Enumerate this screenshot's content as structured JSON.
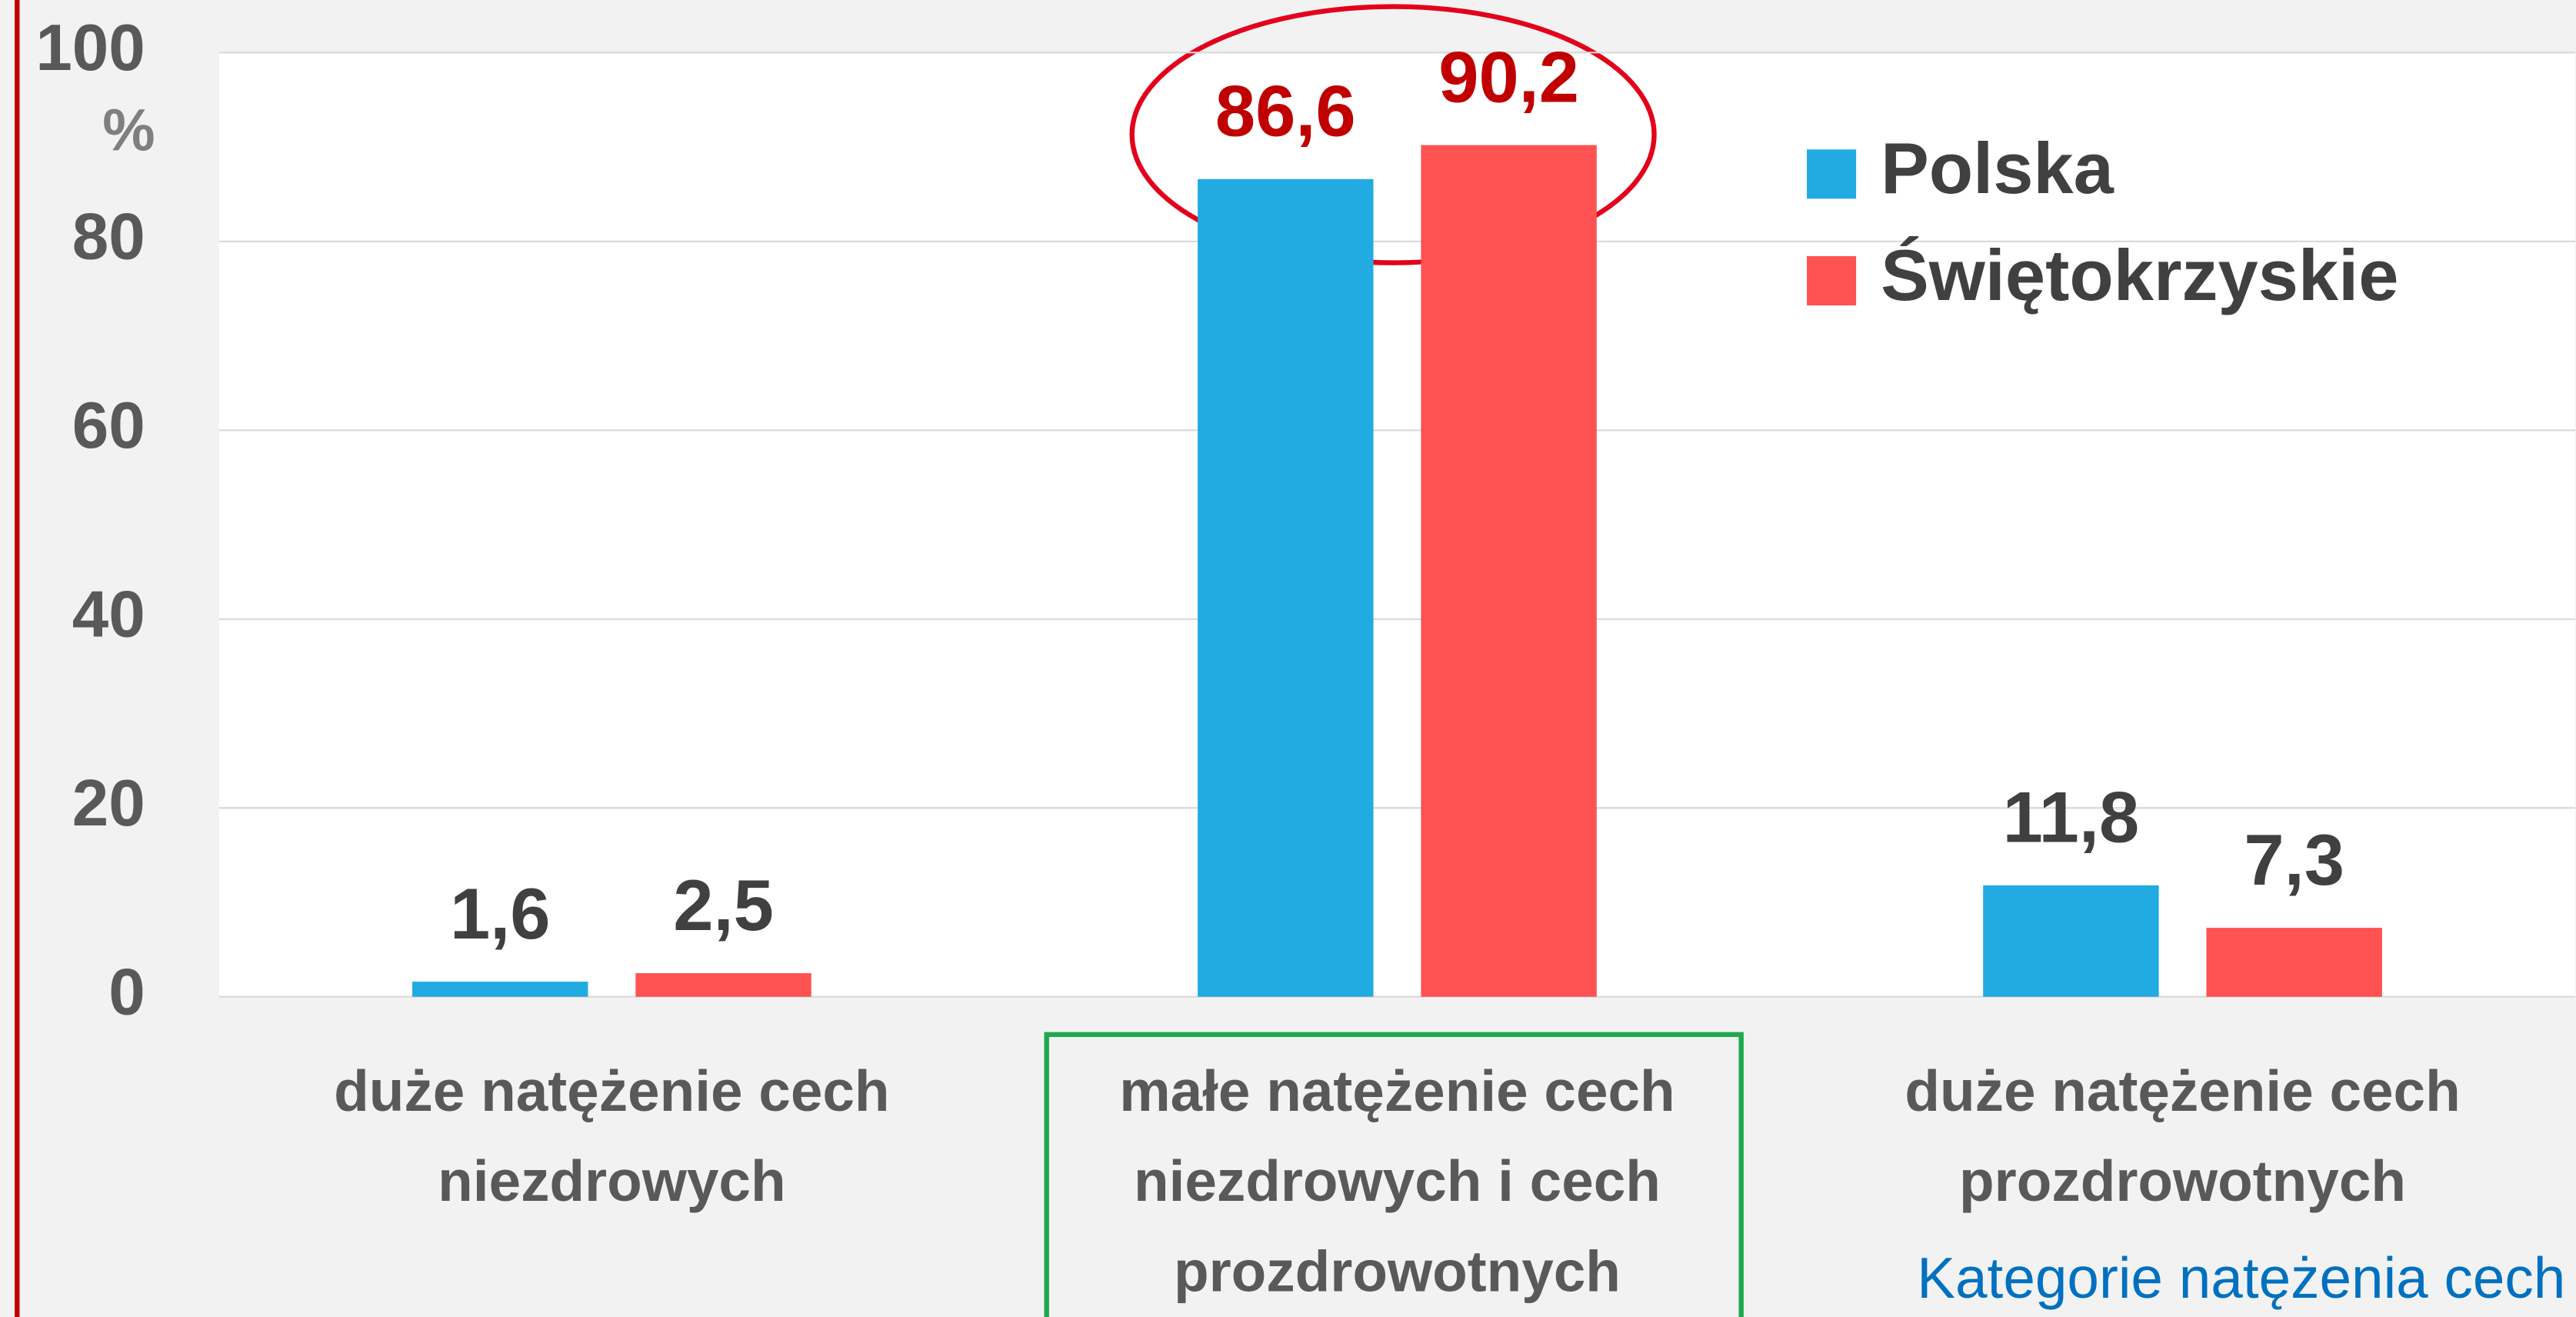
{
  "chart_data": {
    "type": "bar",
    "y_label": "%",
    "x_label": "Kategorie natężenia cech",
    "categories": [
      "duże natężenie cech niezdrowych",
      "małe natężenie cech niezdrowych i cech prozdrowotnych",
      "duże natężenie cech prozdrowotnych"
    ],
    "series": [
      {
        "name": "Polska",
        "color": "#22aae2",
        "values": [
          1.6,
          86.6,
          11.8
        ],
        "value_labels": [
          "1,6",
          "86,6",
          "11,8"
        ]
      },
      {
        "name": "Świętokrzyskie",
        "color": "#ff5252",
        "values": [
          2.5,
          90.2,
          7.3
        ],
        "value_labels": [
          "2,5",
          "90,2",
          "7,3"
        ]
      }
    ],
    "ylim": [
      0,
      100
    ],
    "yticks": [
      0,
      20,
      40,
      60,
      80,
      100
    ],
    "grid": true,
    "legend": "upper right"
  }
}
